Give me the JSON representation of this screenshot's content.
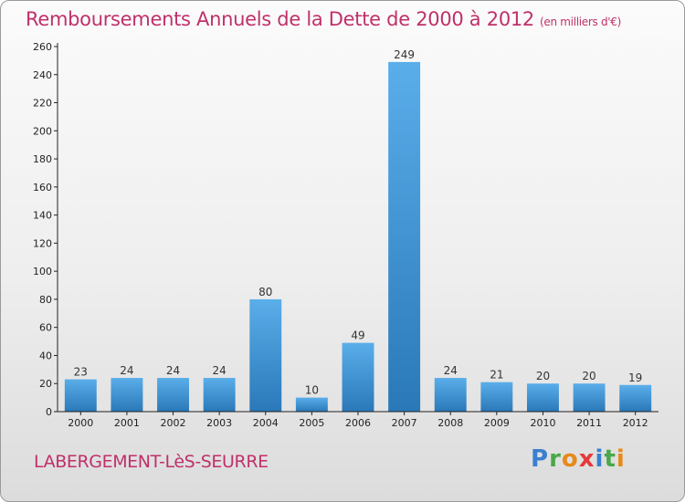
{
  "header": {
    "title": "Remboursements Annuels de la Dette de 2000 à 2012",
    "unit": "(en milliers d'€)"
  },
  "footer": {
    "commune": "LABERGEMENT-LèS-SEURRE"
  },
  "logo": {
    "text": "Proxiti",
    "letter_colors": [
      "#3a7fd0",
      "#4aa84a",
      "#e68a1a",
      "#e53a3a",
      "#3a7fd0",
      "#4aa84a",
      "#e68a1a"
    ]
  },
  "colors": {
    "title": "#c0306a",
    "bar_top": "#5aaeea",
    "bar_bottom": "#2a78b8",
    "axis": "#222222"
  },
  "chart_data": {
    "type": "bar",
    "title": "Remboursements Annuels de la Dette de 2000 à 2012",
    "categories": [
      "2000",
      "2001",
      "2002",
      "2003",
      "2004",
      "2005",
      "2006",
      "2007",
      "2008",
      "2009",
      "2010",
      "2011",
      "2012"
    ],
    "values": [
      23,
      24,
      24,
      24,
      80,
      10,
      49,
      249,
      24,
      21,
      20,
      20,
      19
    ],
    "ylim": [
      0,
      260
    ],
    "yticks": [
      0,
      20,
      40,
      60,
      80,
      100,
      120,
      140,
      160,
      180,
      200,
      220,
      240,
      260
    ],
    "grid": false,
    "legend": "none"
  }
}
